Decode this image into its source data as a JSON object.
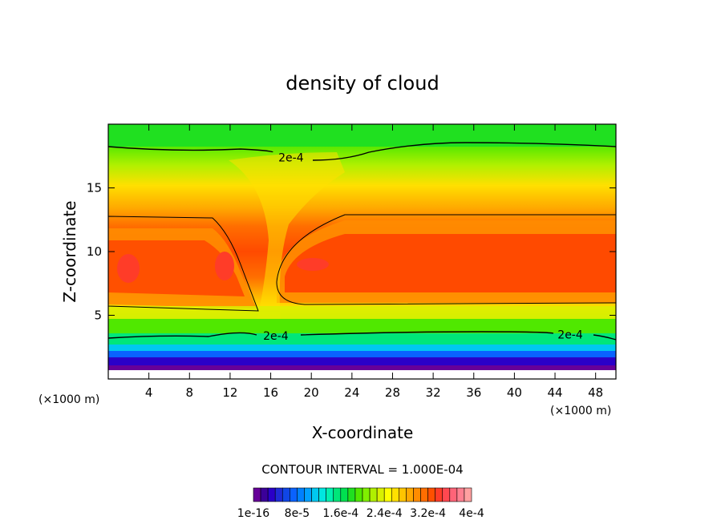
{
  "chart_data": {
    "type": "heatmap",
    "title": "density of cloud",
    "xlabel": "X-coordinate",
    "ylabel": "Z-coordinate",
    "x_unit_left": "(×1000 m)",
    "x_unit_right": "(×1000 m)",
    "xlim": [
      0,
      50
    ],
    "ylim": [
      0,
      20
    ],
    "x_ticks": [
      4,
      8,
      12,
      16,
      20,
      24,
      28,
      32,
      36,
      40,
      44,
      48
    ],
    "x_tick_labels": [
      "4",
      "8",
      "12",
      "16",
      "20",
      "24",
      "28",
      "32",
      "36",
      "40",
      "44",
      "48"
    ],
    "y_ticks": [
      5,
      10,
      15
    ],
    "y_tick_labels": [
      "5",
      "10",
      "15"
    ],
    "contour_interval": "CONTOUR INTERVAL = 1.000E-04",
    "contour_labels": [
      {
        "text": "2e-4",
        "x": 18,
        "z": 17.4
      },
      {
        "text": "2e-4",
        "x": 16.5,
        "z": 3.4
      },
      {
        "text": "2e-4",
        "x": 45.5,
        "z": 3.5
      }
    ],
    "colorbar": {
      "colors": [
        "#660099",
        "#3b0099",
        "#2a00c8",
        "#1f2ad6",
        "#1046e6",
        "#0a62ff",
        "#0080ff",
        "#00a0ff",
        "#00c8f0",
        "#00e6e0",
        "#00f0b0",
        "#00e67a",
        "#00e050",
        "#20e020",
        "#50e800",
        "#80f000",
        "#b0f000",
        "#d8f000",
        "#ffff00",
        "#ffe000",
        "#ffc400",
        "#ffa800",
        "#ff8c00",
        "#ff6e00",
        "#ff5000",
        "#ff3c28",
        "#ff4850",
        "#ff6478",
        "#ff8090",
        "#ffa0a0"
      ],
      "labels": [
        "1e-16",
        "8e-5",
        "1.6e-4",
        "2.4e-4",
        "3.2e-4",
        "4e-4"
      ]
    },
    "grid": false
  }
}
